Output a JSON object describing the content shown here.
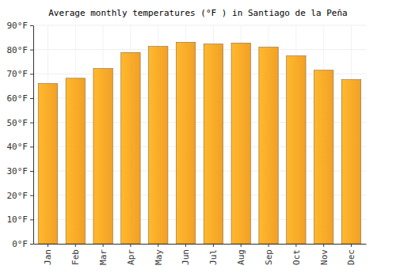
{
  "chart_data": {
    "type": "bar",
    "title": "Average monthly temperatures (°F ) in Santiago de la Peña",
    "categories": [
      "Jan",
      "Feb",
      "Mar",
      "Apr",
      "May",
      "Jun",
      "Jul",
      "Aug",
      "Sep",
      "Oct",
      "Nov",
      "Dec"
    ],
    "values": [
      66,
      68.2,
      72.2,
      78.8,
      81.3,
      83,
      82.3,
      82.7,
      81,
      77.4,
      71.5,
      67.6
    ],
    "color": "#ffa928",
    "ylim": [
      0,
      90
    ],
    "yticks": [
      {
        "value": 0,
        "label": "0°F"
      },
      {
        "value": 10,
        "label": "10°F"
      },
      {
        "value": 20,
        "label": "20°F"
      },
      {
        "value": 30,
        "label": "30°F"
      },
      {
        "value": 40,
        "label": "40°F"
      },
      {
        "value": 50,
        "label": "50°F"
      },
      {
        "value": 60,
        "label": "60°F"
      },
      {
        "value": 70,
        "label": "70°F"
      },
      {
        "value": 80,
        "label": "80°F"
      },
      {
        "value": 90,
        "label": "90°F"
      }
    ],
    "grid": true
  }
}
